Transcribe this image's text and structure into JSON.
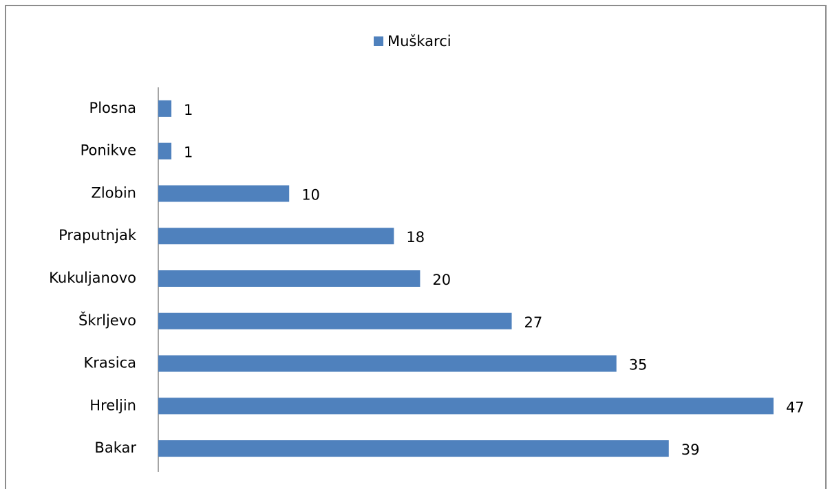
{
  "chart_data": {
    "type": "bar",
    "orientation": "horizontal",
    "categories": [
      "Plosna",
      "Ponikve",
      "Zlobin",
      "Praputnjak",
      "Kukuljanovo",
      "Škrljevo",
      "Krasica",
      "Hreljin",
      "Bakar"
    ],
    "series": [
      {
        "name": "Muškarci",
        "color": "#4f81bd",
        "values": [
          1,
          1,
          10,
          18,
          20,
          27,
          35,
          47,
          39
        ]
      }
    ],
    "xlim": [
      0,
      50
    ],
    "legend": "top"
  }
}
